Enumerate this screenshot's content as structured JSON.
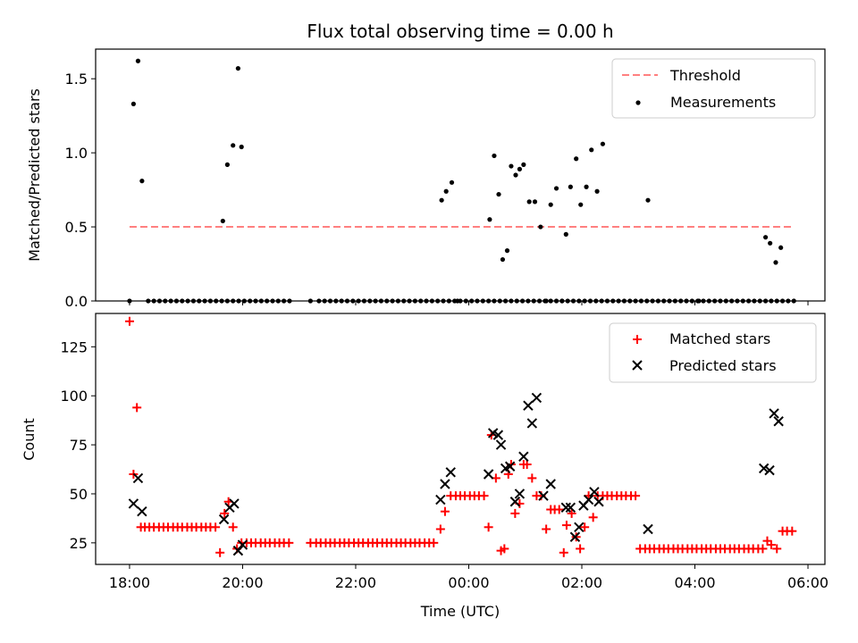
{
  "chart_data": [
    {
      "type": "scatter",
      "title": "Flux total observing time = 0.00 h",
      "xlabel": "",
      "ylabel": "Matched/Predicted stars",
      "ylim": [
        0.0,
        1.7
      ],
      "yticks": [
        "0.0",
        "0.5",
        "1.0",
        "1.5"
      ],
      "xlim": [
        17.4,
        30.3
      ],
      "x_unit": "hours since 00:00 UTC of first night",
      "legend": {
        "placement": "top-right",
        "entries": [
          "Threshold",
          "Measurements"
        ]
      },
      "threshold": {
        "name": "Threshold",
        "value": 0.5,
        "x_range": [
          18.0,
          29.7
        ],
        "color": "#ff8080",
        "style": "dashed"
      },
      "series": [
        {
          "name": "Measurements",
          "color": "#000000",
          "x": [
            18.0,
            18.07,
            18.15,
            18.22,
            18.33,
            18.43,
            18.53,
            18.63,
            18.73,
            18.83,
            18.93,
            19.03,
            19.13,
            19.23,
            19.33,
            19.43,
            19.53,
            19.63,
            19.73,
            19.83,
            19.93,
            20.03,
            20.13,
            20.23,
            20.33,
            20.43,
            20.53,
            20.63,
            20.73,
            20.83,
            21.2,
            21.35,
            21.45,
            21.55,
            21.65,
            21.75,
            21.85,
            21.95,
            22.05,
            22.15,
            22.25,
            22.35,
            22.45,
            22.55,
            22.65,
            22.75,
            22.85,
            22.95,
            23.05,
            23.15,
            23.25,
            23.35,
            23.45,
            23.55,
            23.65,
            23.75,
            23.85,
            23.95,
            24.05,
            24.15,
            24.25,
            24.35,
            24.45,
            24.55,
            24.65,
            24.75,
            24.85,
            24.95,
            25.05,
            25.15,
            25.25,
            25.35,
            25.45,
            25.55,
            25.65,
            25.75,
            25.85,
            25.95,
            26.05,
            26.15,
            26.25,
            26.35,
            26.45,
            26.55,
            26.65,
            26.75,
            26.85,
            26.95,
            27.05,
            27.15,
            27.25,
            27.35,
            27.45,
            27.55,
            27.65,
            27.75,
            27.85,
            27.95,
            28.05,
            28.15,
            28.25,
            28.35,
            28.45,
            28.55,
            28.65,
            28.75,
            28.85,
            28.95,
            29.05,
            29.15,
            29.25,
            29.35,
            29.45,
            29.55,
            29.65,
            29.75
          ],
          "y": [
            0.0,
            1.33,
            1.62,
            0.81,
            0.0,
            0.0,
            0.0,
            0.0,
            0.0,
            0.0,
            0.0,
            0.0,
            0.0,
            0.0,
            0.0,
            0.0,
            0.0,
            0.0,
            0.0,
            0.0,
            0.0,
            0.0,
            0.0,
            0.0,
            0.0,
            0.0,
            0.0,
            0.0,
            0.0,
            0.0,
            0.0,
            0.0,
            0.0,
            0.0,
            0.0,
            0.0,
            0.0,
            0.0,
            0.0,
            0.0,
            0.0,
            0.0,
            0.0,
            0.0,
            0.0,
            0.0,
            0.0,
            0.0,
            0.0,
            0.0,
            0.0,
            0.0,
            0.0,
            0.0,
            0.0,
            0.0,
            0.0,
            0.0,
            0.0,
            0.0,
            0.0,
            0.0,
            0.0,
            0.0,
            0.0,
            0.0,
            0.0,
            0.0,
            0.0,
            0.0,
            0.0,
            0.0,
            0.0,
            0.0,
            0.0,
            0.0,
            0.0,
            0.0,
            0.0,
            0.0,
            0.0,
            0.0,
            0.0,
            0.0,
            0.0,
            0.0,
            0.0,
            0.0,
            0.0,
            0.0,
            0.0,
            0.0,
            0.0,
            0.0,
            0.0,
            0.0,
            0.0,
            0.0,
            0.0,
            0.0,
            0.0,
            0.0,
            0.0,
            0.0,
            0.0,
            0.0,
            0.0,
            0.0,
            0.0,
            0.0,
            0.0,
            0.0,
            0.0,
            0.0,
            0.0,
            0.0
          ],
          "x_extra": [
            19.65,
            19.73,
            19.83,
            19.92,
            19.98,
            23.52,
            23.6,
            23.7,
            23.8,
            24.37,
            24.45,
            24.53,
            24.6,
            24.68,
            24.75,
            24.83,
            24.9,
            24.97,
            25.07,
            25.17,
            25.27,
            25.37,
            25.45,
            25.55,
            25.65,
            25.72,
            25.8,
            25.9,
            25.98,
            26.08,
            26.17,
            26.27,
            26.37,
            27.17,
            28.07,
            29.25,
            29.33,
            29.43,
            29.52
          ],
          "y_extra": [
            0.54,
            0.92,
            1.05,
            1.57,
            1.04,
            0.68,
            0.74,
            0.8,
            0.0,
            0.55,
            0.98,
            0.72,
            0.28,
            0.34,
            0.91,
            0.85,
            0.89,
            0.92,
            0.67,
            0.67,
            0.5,
            0.0,
            0.65,
            0.76,
            0.0,
            0.45,
            0.77,
            0.96,
            0.65,
            0.77,
            1.02,
            0.74,
            1.06,
            0.68,
            0.0,
            0.43,
            0.39,
            0.26,
            0.36
          ]
        }
      ]
    },
    {
      "type": "scatter",
      "title": "",
      "xlabel": "Time (UTC)",
      "ylabel": "Count",
      "ylim": [
        14,
        142
      ],
      "yticks": [
        "25",
        "50",
        "75",
        "100",
        "125"
      ],
      "xlim": [
        17.4,
        30.3
      ],
      "xticks": [
        "18:00",
        "20:00",
        "22:00",
        "00:00",
        "02:00",
        "04:00",
        "06:00"
      ],
      "legend": {
        "placement": "top-right",
        "entries": [
          "Matched stars",
          "Predicted stars"
        ]
      },
      "series": [
        {
          "name": "Matched stars",
          "color": "#ff0000",
          "marker": "+",
          "x": [
            18.0,
            18.07,
            18.13,
            18.2,
            18.27,
            18.35,
            18.43,
            18.52,
            18.6,
            18.68,
            18.77,
            18.85,
            18.93,
            19.02,
            19.1,
            19.18,
            19.27,
            19.35,
            19.43,
            19.52,
            19.6,
            19.68,
            19.75,
            19.83,
            19.9,
            19.98,
            20.07,
            20.15,
            20.23,
            20.32,
            20.4,
            20.48,
            20.57,
            20.65,
            20.73,
            20.82,
            21.2,
            21.3,
            21.38,
            21.47,
            21.55,
            21.63,
            21.72,
            21.8,
            21.88,
            21.97,
            22.05,
            22.13,
            22.22,
            22.3,
            22.38,
            22.47,
            22.55,
            22.63,
            22.72,
            22.8,
            22.88,
            22.97,
            23.05,
            23.13,
            23.22,
            23.3,
            23.38,
            23.5,
            23.58,
            23.68,
            23.77,
            23.85,
            23.93,
            24.02,
            24.1,
            24.18,
            24.27,
            24.35,
            24.4,
            24.48,
            24.57,
            24.63,
            24.7,
            24.75,
            24.82,
            24.9,
            24.97,
            25.03,
            25.12,
            25.2,
            25.28,
            25.37,
            25.45,
            25.52,
            25.6,
            25.68,
            25.73,
            25.82,
            25.9,
            25.97,
            26.05,
            26.12,
            26.2,
            26.28,
            26.37,
            26.45,
            26.53,
            26.62,
            26.7,
            26.78,
            26.87,
            26.95,
            27.03,
            27.12,
            27.2,
            27.28,
            27.37,
            27.45,
            27.53,
            27.62,
            27.7,
            27.78,
            27.87,
            27.95,
            28.03,
            28.12,
            28.2,
            28.28,
            28.37,
            28.45,
            28.53,
            28.62,
            28.7,
            28.78,
            28.87,
            28.95,
            29.03,
            29.12,
            29.2,
            29.28,
            29.35,
            29.45,
            29.55,
            29.63,
            29.72
          ],
          "y": [
            138,
            60,
            94,
            33,
            33,
            33,
            33,
            33,
            33,
            33,
            33,
            33,
            33,
            33,
            33,
            33,
            33,
            33,
            33,
            33,
            20,
            40,
            46,
            33,
            22,
            25,
            25,
            25,
            25,
            25,
            25,
            25,
            25,
            25,
            25,
            25,
            25,
            25,
            25,
            25,
            25,
            25,
            25,
            25,
            25,
            25,
            25,
            25,
            25,
            25,
            25,
            25,
            25,
            25,
            25,
            25,
            25,
            25,
            25,
            25,
            25,
            25,
            25,
            32,
            41,
            49,
            49,
            49,
            49,
            49,
            49,
            49,
            49,
            33,
            80,
            58,
            21,
            22,
            60,
            65,
            40,
            45,
            65,
            65,
            58,
            49,
            49,
            32,
            42,
            42,
            42,
            20,
            34,
            40,
            28,
            22,
            33,
            49,
            38,
            49,
            49,
            49,
            49,
            49,
            49,
            49,
            49,
            49,
            22,
            22,
            22,
            22,
            22,
            22,
            22,
            22,
            22,
            22,
            22,
            22,
            22,
            22,
            22,
            22,
            22,
            22,
            22,
            22,
            22,
            22,
            22,
            22,
            22,
            22,
            22,
            26,
            24,
            22,
            31,
            31,
            31
          ]
        },
        {
          "name": "Predicted stars",
          "color": "#000000",
          "marker": "x",
          "x": [
            18.07,
            18.15,
            18.22,
            19.67,
            19.77,
            19.85,
            19.92,
            20.0,
            23.5,
            23.58,
            23.68,
            24.35,
            24.43,
            24.52,
            24.57,
            24.65,
            24.73,
            24.82,
            24.9,
            24.97,
            25.05,
            25.12,
            25.2,
            25.32,
            25.45,
            25.72,
            25.8,
            25.88,
            25.95,
            26.03,
            26.12,
            26.22,
            26.3,
            27.17,
            29.22,
            29.32,
            29.4,
            29.48
          ],
          "y": [
            45,
            58,
            41,
            37,
            43,
            45,
            21,
            24,
            47,
            55,
            61,
            60,
            81,
            80,
            75,
            63,
            64,
            46,
            50,
            69,
            95,
            86,
            99,
            49,
            55,
            43,
            43,
            28,
            33,
            44,
            47,
            51,
            46,
            32,
            63,
            62,
            91,
            87
          ]
        }
      ]
    }
  ]
}
